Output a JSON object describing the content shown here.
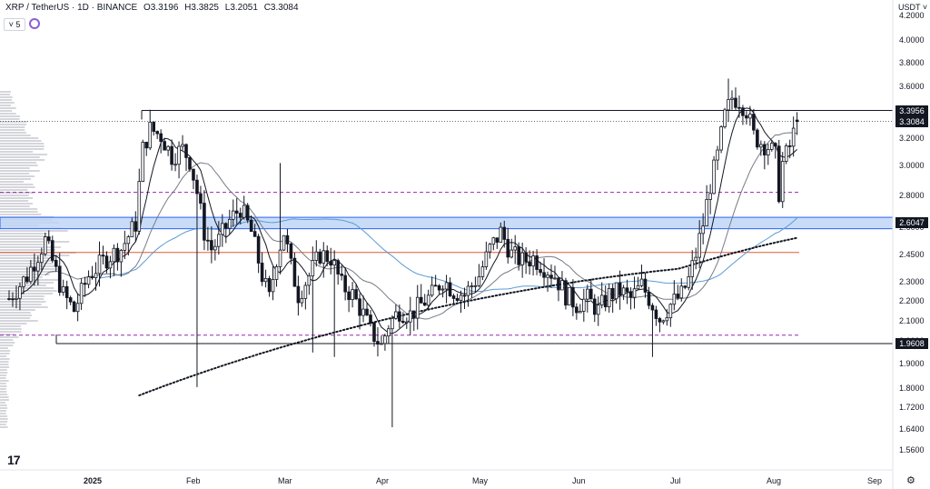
{
  "header": {
    "symbol": "XRP / TetherUS · 1D · BINANCE",
    "open": "O3.3196",
    "high": "H3.3825",
    "low": "L3.2051",
    "close": "C3.3084",
    "indicator_count": "5"
  },
  "currency": "USDT",
  "tv_logo": "17",
  "price_labels": {
    "resistance": "3.3956",
    "last": "3.3084",
    "mid_zone": "2.6047",
    "support": "1.9608"
  },
  "y_ticks": [
    "4.2000",
    "4.0000",
    "3.8000",
    "3.6000",
    "3.4000",
    "3.2000",
    "3.0000",
    "2.8000",
    "2.6000",
    "2.4500",
    "2.3000",
    "2.2000",
    "2.1000",
    "2.0000",
    "1.9000",
    "1.8000",
    "1.7200",
    "1.6400",
    "1.5600"
  ],
  "x_ticks": [
    "2025",
    "Feb",
    "Mar",
    "Apr",
    "May",
    "Jun",
    "Jul",
    "Aug",
    "Sep"
  ],
  "colors": {
    "candle": "#131722",
    "zone": "#bcd3f5",
    "zone_border": "#2962ff",
    "purple_dash": "#9c27b0",
    "red_line": "#e05a3a",
    "sma_blue": "#5b9bd5",
    "ma_fast": "#131722",
    "ma_mid": "#787b86"
  },
  "chart_data": {
    "type": "candlestick",
    "scale": "log",
    "ylim": [
      1.52,
      4.35
    ],
    "x_axis_labels": [
      "2025",
      "Feb",
      "Mar",
      "Apr",
      "May",
      "Jun",
      "Jul",
      "Aug",
      "Sep"
    ],
    "levels": {
      "resistance": 3.3956,
      "support": 1.9608,
      "zone": [
        2.57,
        2.64
      ],
      "dashed_upper": 2.8,
      "dashed_lower": 2.0,
      "red_line": 2.43
    },
    "last_price": 3.3084,
    "ohlc_samples": [
      {
        "date": "Jan",
        "open": 2.3,
        "high": 2.45,
        "low": 2.0,
        "close": 2.33
      },
      {
        "date": "mid-Jan",
        "open": 3.1,
        "high": 3.4,
        "low": 3.0,
        "close": 3.25
      },
      {
        "date": "Feb",
        "open": 3.0,
        "high": 3.05,
        "low": 1.77,
        "close": 2.7
      },
      {
        "date": "Mar",
        "open": 2.3,
        "high": 3.0,
        "low": 1.95,
        "close": 2.45
      },
      {
        "date": "Apr",
        "open": 2.05,
        "high": 2.2,
        "low": 1.61,
        "close": 1.95
      },
      {
        "date": "May",
        "open": 2.3,
        "high": 2.65,
        "low": 2.1,
        "close": 2.35
      },
      {
        "date": "Jun",
        "open": 2.15,
        "high": 2.3,
        "low": 2.05,
        "close": 2.15
      },
      {
        "date": "Jul",
        "open": 2.3,
        "high": 3.66,
        "low": 2.25,
        "close": 3.5
      },
      {
        "date": "Aug",
        "open": 3.05,
        "high": 3.3825,
        "low": 2.73,
        "close": 3.3084
      }
    ]
  }
}
